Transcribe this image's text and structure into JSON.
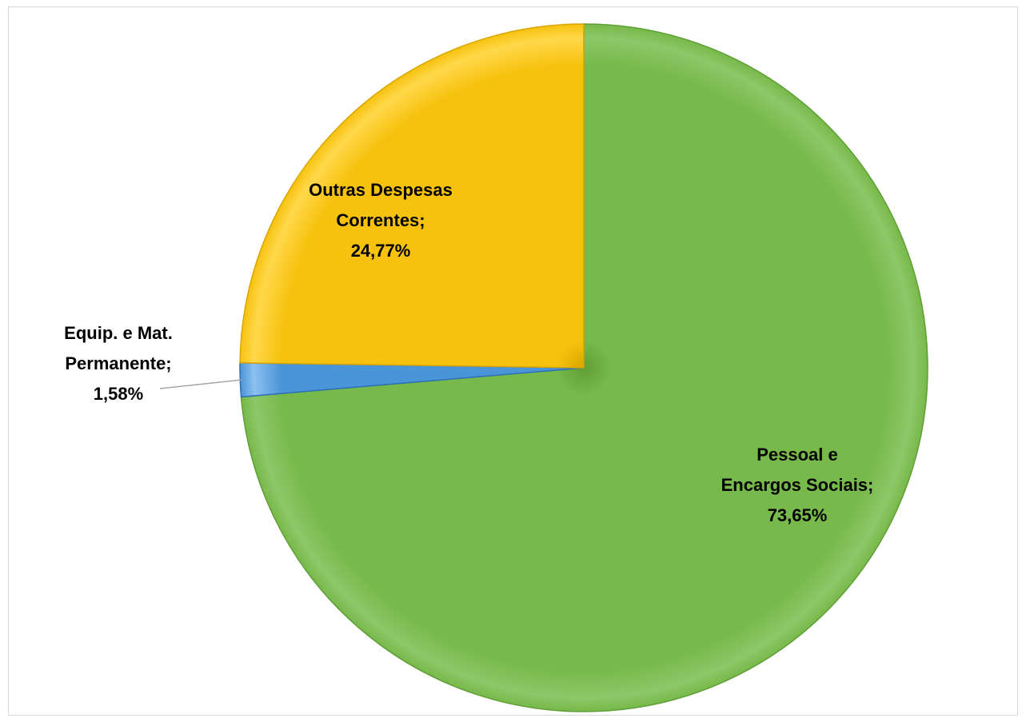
{
  "chart_data": {
    "type": "pie",
    "title": "",
    "start_angle_deg": 0,
    "direction": "clockwise",
    "slices": [
      {
        "label_lines": [
          "Pessoal e",
          "Encargos Sociais;",
          "73,65%"
        ],
        "category": "Pessoal e Encargos Sociais",
        "value": 73.65,
        "color": "#77b94a",
        "color_light": "#8cc868",
        "color_dark": "#5f9e35"
      },
      {
        "label_lines": [
          "Equip. e Mat.",
          "Permanente;",
          "1,58%"
        ],
        "category": "Equip. e Mat. Permanente",
        "value": 1.58,
        "color": "#4a94d8",
        "color_light": "#8cc0ef",
        "color_dark": "#2c70b8"
      },
      {
        "label_lines": [
          "Outras Despesas",
          "Correntes;",
          "24,77%"
        ],
        "category": "Outras Despesas Correntes",
        "value": 24.77,
        "color": "#f7c20e",
        "color_light": "#ffd84a",
        "color_dark": "#d9a500"
      }
    ],
    "legend": "none",
    "data_labels": "category; percent"
  }
}
